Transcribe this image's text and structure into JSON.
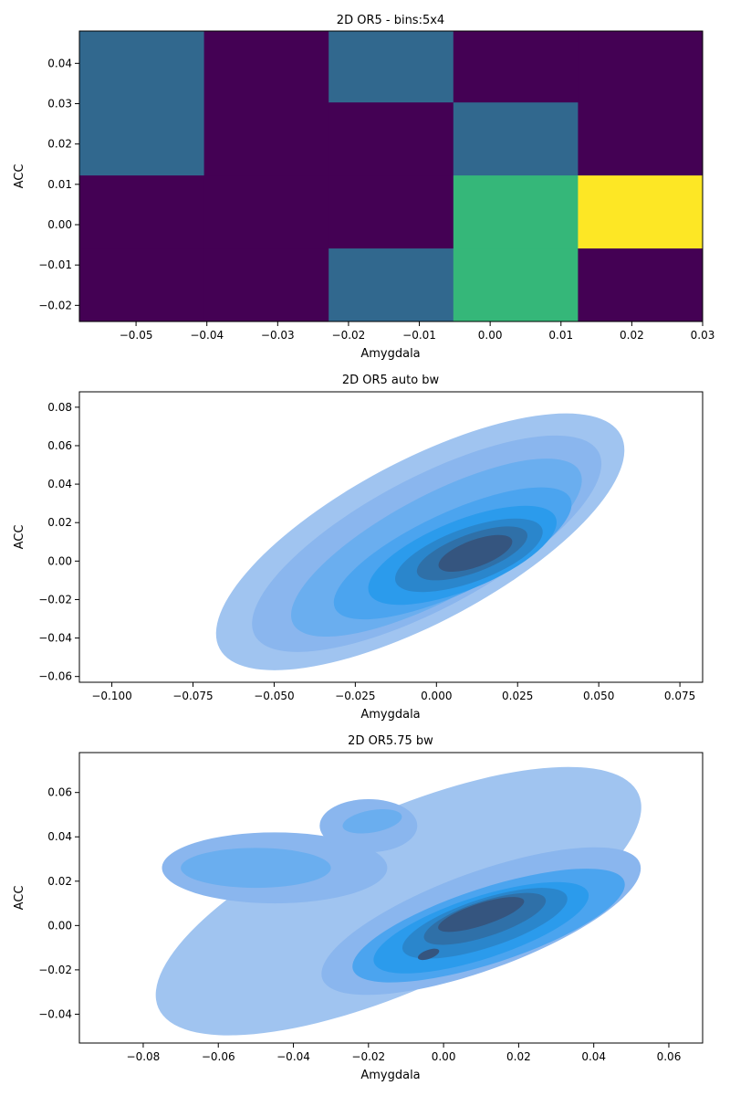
{
  "chart_data": [
    {
      "type": "heatmap",
      "title": "2D OR5 - bins:5x4",
      "xlabel": "Amygdala",
      "ylabel": "ACC",
      "xlim": [
        -0.058,
        0.03
      ],
      "ylim": [
        -0.024,
        0.048
      ],
      "x_edges": [
        -0.058,
        -0.0404,
        -0.0228,
        -0.0052,
        0.0124,
        0.03
      ],
      "y_edges": [
        -0.024,
        -0.0059,
        0.0122,
        0.0303,
        0.048
      ],
      "y_edges_note_top_row_split": [
        0.0303,
        0.048
      ],
      "cells": [
        {
          "x_bin": 0,
          "y_range": [
            0.0122,
            0.048
          ],
          "count": 1
        },
        {
          "x_bin": 1,
          "y_range": [
            0.0122,
            0.048
          ],
          "count": 0
        },
        {
          "x_bin": 2,
          "y_range": [
            0.0303,
            0.048
          ],
          "count": 1
        },
        {
          "x_bin": 2,
          "y_range": [
            0.0122,
            0.0303
          ],
          "count": 0
        },
        {
          "x_bin": 3,
          "y_range": [
            0.0303,
            0.048
          ],
          "count": 0
        },
        {
          "x_bin": 3,
          "y_range": [
            0.0122,
            0.0303
          ],
          "count": 1
        },
        {
          "x_bin": 4,
          "y_range": [
            0.0122,
            0.048
          ],
          "count": 0
        },
        {
          "x_bin": 0,
          "y_range": [
            -0.0059,
            0.0122
          ],
          "count": 0
        },
        {
          "x_bin": 1,
          "y_range": [
            -0.0059,
            0.0122
          ],
          "count": 0
        },
        {
          "x_bin": 2,
          "y_range": [
            -0.0059,
            0.0122
          ],
          "count": 0
        },
        {
          "x_bin": 3,
          "y_range": [
            -0.0059,
            0.0122
          ],
          "count": 2
        },
        {
          "x_bin": 4,
          "y_range": [
            -0.0059,
            0.0122
          ],
          "count": 3
        },
        {
          "x_bin": 0,
          "y_range": [
            -0.024,
            -0.0059
          ],
          "count": 0
        },
        {
          "x_bin": 1,
          "y_range": [
            -0.024,
            -0.0059
          ],
          "count": 0
        },
        {
          "x_bin": 2,
          "y_range": [
            -0.024,
            -0.0059
          ],
          "count": 1
        },
        {
          "x_bin": 3,
          "y_range": [
            -0.024,
            -0.0059
          ],
          "count": 2
        },
        {
          "x_bin": 4,
          "y_range": [
            -0.024,
            -0.0059
          ],
          "count": 0
        }
      ],
      "colors": {
        "0": "#440154",
        "1": "#31688e",
        "2": "#35b779",
        "3": "#fde725"
      },
      "xticks": [
        -0.05,
        -0.04,
        -0.03,
        -0.02,
        -0.01,
        0.0,
        0.01,
        0.02,
        0.03
      ],
      "xtick_labels": [
        "−0.05",
        "−0.04",
        "−0.03",
        "−0.02",
        "−0.01",
        "0.00",
        "0.01",
        "0.02",
        "0.03"
      ],
      "yticks": [
        -0.02,
        -0.01,
        0.0,
        0.01,
        0.02,
        0.03,
        0.04
      ],
      "ytick_labels": [
        "−0.02",
        "−0.01",
        "0.00",
        "0.01",
        "0.02",
        "0.03",
        "0.04"
      ]
    },
    {
      "type": "contour",
      "title": "2D OR5 auto bw",
      "xlabel": "Amygdala",
      "ylabel": "ACC",
      "xlim": [
        -0.11,
        0.082
      ],
      "ylim": [
        -0.063,
        0.088
      ],
      "fill_color": "#1f77b4",
      "levels": [
        {
          "color": "#a0c4f0",
          "cx": -0.005,
          "cy": 0.01,
          "rx": 0.07,
          "ry": 0.042,
          "angle": -28
        },
        {
          "color": "#8ab6ee",
          "cx": -0.003,
          "cy": 0.009,
          "rx": 0.06,
          "ry": 0.034,
          "angle": -28
        },
        {
          "color": "#6aaeef",
          "cx": 0.0,
          "cy": 0.007,
          "rx": 0.05,
          "ry": 0.027,
          "angle": -28
        },
        {
          "color": "#4ba4ef",
          "cx": 0.005,
          "cy": 0.004,
          "rx": 0.04,
          "ry": 0.021,
          "angle": -25
        },
        {
          "color": "#2b9bec",
          "cx": 0.008,
          "cy": 0.003,
          "rx": 0.031,
          "ry": 0.018,
          "angle": -22
        },
        {
          "color": "#2a86cc",
          "cx": 0.01,
          "cy": 0.003,
          "rx": 0.024,
          "ry": 0.014,
          "angle": -20
        },
        {
          "color": "#2f70a8",
          "cx": 0.011,
          "cy": 0.004,
          "rx": 0.018,
          "ry": 0.01,
          "angle": -20
        },
        {
          "color": "#35557f",
          "cx": 0.012,
          "cy": 0.004,
          "rx": 0.012,
          "ry": 0.007,
          "angle": -20
        }
      ],
      "xticks": [
        -0.1,
        -0.075,
        -0.05,
        -0.025,
        0.0,
        0.025,
        0.05,
        0.075
      ],
      "xtick_labels": [
        "−0.100",
        "−0.075",
        "−0.050",
        "−0.025",
        "0.000",
        "0.025",
        "0.050",
        "0.075"
      ],
      "yticks": [
        -0.06,
        -0.04,
        -0.02,
        0.0,
        0.02,
        0.04,
        0.06,
        0.08
      ],
      "ytick_labels": [
        "−0.06",
        "−0.04",
        "−0.02",
        "0.00",
        "0.02",
        "0.04",
        "0.06",
        "0.08"
      ]
    },
    {
      "type": "contour",
      "title": "2D OR5.75 bw",
      "xlabel": "Amygdala",
      "ylabel": "ACC",
      "xlim": [
        -0.097,
        0.069
      ],
      "ylim": [
        -0.053,
        0.078
      ],
      "fill_color": "#1f77b4",
      "levels": [
        {
          "color": "#a0c4f0",
          "cx": -0.012,
          "cy": 0.011,
          "rx": 0.07,
          "ry": 0.04,
          "angle": -24
        },
        {
          "color": "#8ab6ee",
          "cx": -0.045,
          "cy": 0.026,
          "rx": 0.03,
          "ry": 0.016,
          "angle": 0
        },
        {
          "color": "#8ab6ee",
          "cx": -0.02,
          "cy": 0.045,
          "rx": 0.013,
          "ry": 0.012,
          "angle": 0
        },
        {
          "color": "#8ab6ee",
          "cx": 0.01,
          "cy": 0.002,
          "rx": 0.045,
          "ry": 0.022,
          "angle": -20
        },
        {
          "color": "#6aaeef",
          "cx": -0.05,
          "cy": 0.026,
          "rx": 0.02,
          "ry": 0.009,
          "angle": 0
        },
        {
          "color": "#6aaeef",
          "cx": -0.019,
          "cy": 0.047,
          "rx": 0.008,
          "ry": 0.005,
          "angle": -10
        },
        {
          "color": "#4ba4ef",
          "cx": 0.012,
          "cy": 0.0,
          "rx": 0.038,
          "ry": 0.017,
          "angle": -18
        },
        {
          "color": "#2b9bec",
          "cx": 0.01,
          "cy": -0.001,
          "rx": 0.03,
          "ry": 0.014,
          "angle": -18
        },
        {
          "color": "#2a86cc",
          "cx": 0.011,
          "cy": 0.001,
          "rx": 0.023,
          "ry": 0.011,
          "angle": -18
        },
        {
          "color": "#2f70a8",
          "cx": 0.011,
          "cy": 0.003,
          "rx": 0.017,
          "ry": 0.008,
          "angle": -18
        },
        {
          "color": "#35557f",
          "cx": 0.01,
          "cy": 0.005,
          "rx": 0.012,
          "ry": 0.005,
          "angle": -18
        },
        {
          "color": "#35557f",
          "cx": -0.004,
          "cy": -0.013,
          "rx": 0.003,
          "ry": 0.002,
          "angle": -20
        }
      ],
      "xticks": [
        -0.08,
        -0.06,
        -0.04,
        -0.02,
        0.0,
        0.02,
        0.04,
        0.06
      ],
      "xtick_labels": [
        "−0.08",
        "−0.06",
        "−0.04",
        "−0.02",
        "0.00",
        "0.02",
        "0.04",
        "0.06"
      ],
      "yticks": [
        -0.04,
        -0.02,
        0.0,
        0.02,
        0.04,
        0.06
      ],
      "ytick_labels": [
        "−0.04",
        "−0.02",
        "0.00",
        "0.02",
        "0.04",
        "0.06"
      ]
    }
  ]
}
